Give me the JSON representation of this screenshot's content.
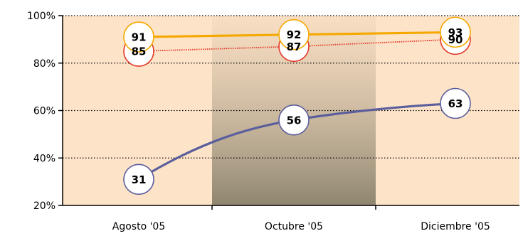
{
  "chart_data": {
    "type": "line",
    "categories": [
      "Agosto '05",
      "Octubre '05",
      "Diciembre '05"
    ],
    "series": [
      {
        "values": [
          91,
          92,
          93
        ],
        "color": "#f5a800",
        "line_style": "solid"
      },
      {
        "values": [
          85,
          87,
          90
        ],
        "color": "#e23a2a",
        "line_style": "dotted"
      },
      {
        "values": [
          31,
          56,
          63
        ],
        "color": "#5b5e9c",
        "line_style": "solid"
      }
    ],
    "ylim": [
      20,
      100
    ],
    "y_ticks": [
      20,
      40,
      60,
      80,
      100
    ],
    "y_tick_labels": [
      "20%",
      "40%",
      "60%",
      "80%",
      "100%"
    ],
    "grid": "horizontal-dotted",
    "plot_background": "#fde3c8",
    "highlight_band": {
      "category": "Octubre '05",
      "color": "#a09578"
    },
    "title": "",
    "xlabel": "",
    "ylabel": ""
  }
}
